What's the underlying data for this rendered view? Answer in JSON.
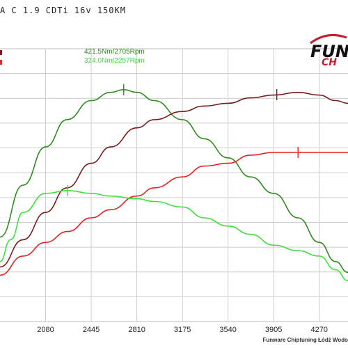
{
  "title": "A C 1.9 CDTi 16v 150KM",
  "logo": {
    "main": "FUN",
    "sub": "CH"
  },
  "footer": "Funware Chiptuning Łódź Wodo",
  "annotations": {
    "torque_tuned": "421.5Nm/2705Rpm",
    "torque_stock": "324.0Nm/2257Rpm"
  },
  "colors": {
    "torque_tuned": "#2e8b1f",
    "power_tuned": "#7a1a1a",
    "power_stock": "#e82020",
    "torque_stock": "#3de03d",
    "grid": "#cccccc"
  },
  "chart_data": {
    "type": "line",
    "xlabel": "",
    "ylabel": "",
    "xlim": [
      1715,
      4500
    ],
    "ylim": [
      0,
      1
    ],
    "grid": true,
    "x_ticks": [
      2080,
      2445,
      2810,
      3175,
      3540,
      3905,
      4270
    ],
    "series": [
      {
        "key": "torque_tuned",
        "x": [
          1715,
          1900,
          2080,
          2250,
          2445,
          2600,
          2705,
          2810,
          2950,
          3175,
          3350,
          3540,
          3720,
          3905,
          4100,
          4270,
          4400,
          4500
        ],
        "y": [
          0.31,
          0.5,
          0.64,
          0.74,
          0.81,
          0.84,
          0.85,
          0.84,
          0.81,
          0.74,
          0.67,
          0.6,
          0.53,
          0.47,
          0.38,
          0.29,
          0.22,
          0.18
        ]
      },
      {
        "key": "power_tuned",
        "x": [
          1715,
          1900,
          2080,
          2250,
          2445,
          2600,
          2810,
          2950,
          3175,
          3350,
          3540,
          3720,
          3905,
          4100,
          4270,
          4400,
          4500
        ],
        "y": [
          0.2,
          0.3,
          0.4,
          0.49,
          0.58,
          0.64,
          0.71,
          0.74,
          0.77,
          0.79,
          0.8,
          0.82,
          0.83,
          0.84,
          0.83,
          0.81,
          0.8
        ]
      },
      {
        "key": "power_stock",
        "x": [
          1715,
          1900,
          2080,
          2257,
          2445,
          2600,
          2810,
          2950,
          3175,
          3350,
          3540,
          3720,
          3905,
          4100,
          4270,
          4400,
          4500
        ],
        "y": [
          0.17,
          0.24,
          0.29,
          0.33,
          0.38,
          0.41,
          0.46,
          0.49,
          0.53,
          0.57,
          0.58,
          0.61,
          0.62,
          0.62,
          0.62,
          0.62,
          0.62
        ]
      },
      {
        "key": "torque_stock",
        "x": [
          1715,
          1800,
          1900,
          2080,
          2257,
          2445,
          2600,
          2810,
          2950,
          3175,
          3350,
          3540,
          3720,
          3905,
          4100,
          4270,
          4400,
          4500
        ],
        "y": [
          0.22,
          0.3,
          0.4,
          0.47,
          0.48,
          0.47,
          0.46,
          0.45,
          0.44,
          0.42,
          0.38,
          0.35,
          0.32,
          0.28,
          0.26,
          0.24,
          0.19,
          0.15
        ]
      }
    ],
    "peaks": [
      {
        "series": "torque_tuned",
        "x": 2705
      },
      {
        "series": "torque_stock",
        "x": 2257
      },
      {
        "series": "power_tuned",
        "x": 3930
      },
      {
        "series": "power_stock",
        "x": 4100
      }
    ]
  }
}
